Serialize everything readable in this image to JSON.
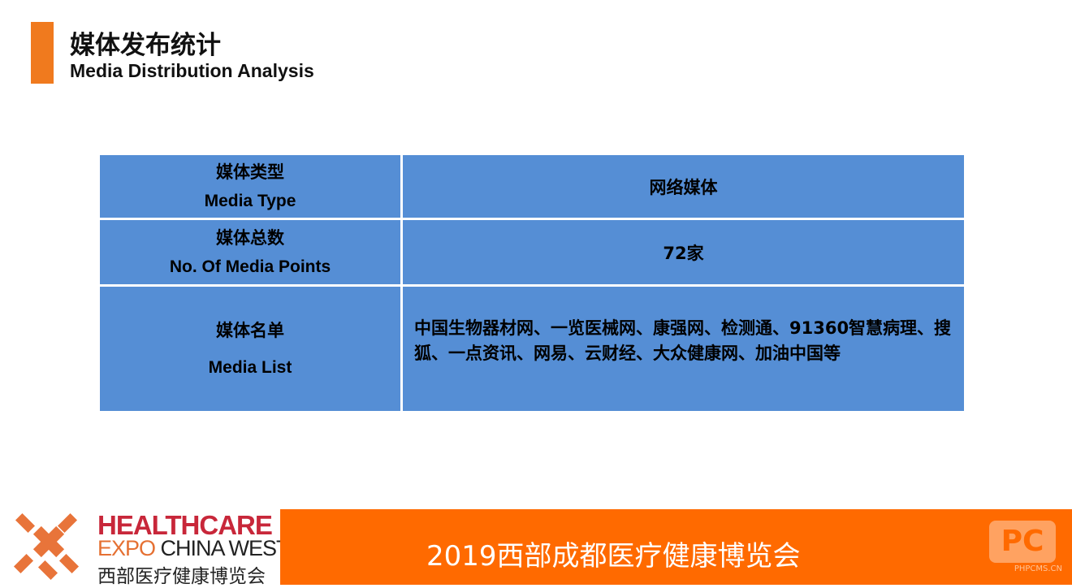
{
  "header": {
    "title_cn": "媒体发布统计",
    "title_en": "Media Distribution Analysis"
  },
  "table": {
    "rows": [
      {
        "label_cn": "媒体类型",
        "label_en": "Media Type",
        "value": "网络媒体"
      },
      {
        "label_cn": "媒体总数",
        "label_en": "No. Of Media Points",
        "value": "72家"
      },
      {
        "label_cn": "媒体名单",
        "label_en": "Media List",
        "value": "中国生物器材网、一览医械网、康强网、检测通、91360智慧病理、搜狐、一点资讯、网易、云财经、大众健康网、加油中国等"
      }
    ]
  },
  "footer": {
    "brand_line1": "HEALTHCARE",
    "brand_line2a": "EXPO",
    "brand_line2b": " CHINA WEST",
    "brand_line3": "西部医疗健康博览会",
    "banner": "2019西部成都医疗健康博览会",
    "watermark": "PHPCMS.CN",
    "watermark_logo": "PC"
  },
  "colors": {
    "accent": "#F07A1E",
    "table": "#558ED5",
    "footer": "#FF6A00",
    "brand_red": "#C8273A"
  }
}
